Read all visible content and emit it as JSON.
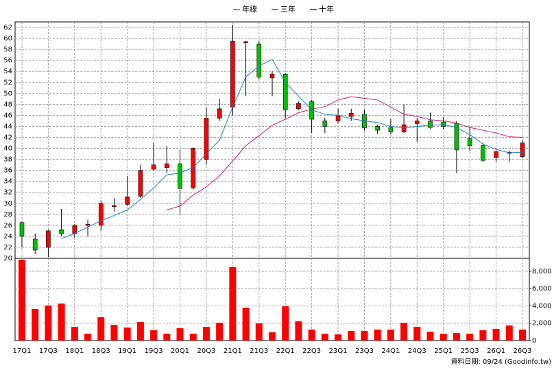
{
  "chart_data": [
    {
      "type": "candlestick",
      "categories": [
        "17Q1",
        null,
        "17Q3",
        null,
        "18Q1",
        null,
        "18Q3",
        null,
        "19Q1",
        null,
        "19Q3",
        null,
        "20Q1",
        null,
        "20Q3",
        null,
        "21Q1",
        null,
        "21Q3",
        null,
        "22Q1",
        null,
        "22Q3",
        null,
        "23Q1",
        null,
        "23Q3",
        null,
        "24Q1",
        null,
        "24Q3",
        null,
        "25Q1",
        null,
        "25Q3",
        null,
        "26Q1",
        null,
        "26Q3"
      ],
      "open": [
        26.5,
        23.5,
        22,
        25.2,
        24.5,
        26,
        26,
        29.4,
        29.8,
        31.3,
        36.2,
        36.5,
        37.2,
        32.8,
        38,
        45.5,
        47.5,
        59.2,
        59,
        52.8,
        53.5,
        47.2,
        48.5,
        45,
        45,
        45.8,
        46.2,
        44,
        43.8,
        43,
        44.5,
        45,
        44.8,
        44.5,
        41.8,
        40.5,
        38.3,
        39.1,
        38.5
      ],
      "high": [
        26.8,
        24.5,
        25.2,
        29,
        26.2,
        27,
        30.5,
        31,
        35,
        37,
        41,
        40.5,
        39.7,
        40.2,
        47.5,
        49,
        62.5,
        59.5,
        59.5,
        54,
        53.7,
        48.5,
        48.8,
        45.6,
        47.2,
        47.2,
        47,
        44.3,
        45.3,
        48,
        45.5,
        46.5,
        45.7,
        45,
        44,
        41,
        39.6,
        39.6,
        41.5
      ],
      "low": [
        22,
        20.8,
        20.2,
        24,
        23.8,
        24,
        25,
        28.5,
        29.5,
        31,
        36,
        35.5,
        28,
        32.5,
        37,
        45,
        46,
        49.5,
        52.5,
        49.5,
        45.5,
        47,
        42.8,
        42.8,
        44.5,
        45,
        43.2,
        42.6,
        42.5,
        42.8,
        41.2,
        43.5,
        43.5,
        35.5,
        39.5,
        37.5,
        37.5,
        37.5,
        38.2
      ],
      "close": [
        24,
        21.5,
        25,
        24.5,
        26,
        26.2,
        30,
        29.6,
        31.2,
        36,
        37,
        37.2,
        32.7,
        40,
        45.5,
        47.2,
        59.5,
        59.4,
        53,
        53.5,
        47,
        48.2,
        45.3,
        44,
        46,
        46.4,
        43.7,
        43.3,
        43,
        44.3,
        45,
        43.8,
        44,
        39.7,
        40.5,
        37.8,
        39.4,
        39.3,
        41
      ],
      "up_color": "#ff0000",
      "down_color": "#00c000",
      "series": [
        {
          "name": "年線",
          "color": "#1e78d2",
          "values": [
            null,
            null,
            null,
            23.6,
            24.5,
            25.7,
            26.8,
            27.8,
            28.8,
            30.7,
            32.8,
            35.2,
            35.5,
            36.5,
            39,
            41.5,
            47.5,
            53,
            55,
            56.2,
            52,
            49.5,
            47,
            46.2,
            46,
            45.4,
            45,
            44.7,
            44,
            43.7,
            44,
            44.2,
            44.3,
            43.8,
            42.5,
            40.8,
            39.8,
            39.2,
            39.3
          ]
        },
        {
          "name": "三年",
          "color": "#d2146e",
          "values": [
            null,
            null,
            null,
            null,
            null,
            null,
            null,
            null,
            null,
            null,
            null,
            28.8,
            29.5,
            31.5,
            33,
            35,
            37.7,
            40.5,
            42.3,
            44.2,
            45.3,
            46.5,
            47.1,
            47.6,
            48.8,
            49.4,
            49.1,
            48.8,
            47.5,
            46.2,
            45.8,
            45.2,
            45,
            44.6,
            43.8,
            43.3,
            42.8,
            42.1,
            42
          ]
        },
        {
          "name": "十年",
          "color": "#8c0a3c",
          "values": [
            null,
            null,
            null,
            null,
            null,
            null,
            null,
            null,
            null,
            null,
            null,
            null,
            null,
            null,
            null,
            null,
            null,
            null,
            null,
            null,
            null,
            null,
            null,
            null,
            null,
            null,
            null,
            null,
            null,
            null,
            null,
            null,
            null,
            null,
            null,
            null,
            null,
            null,
            null
          ]
        }
      ],
      "ylim": [
        20,
        63
      ],
      "yticks": [
        20,
        22,
        24,
        26,
        28,
        30,
        32,
        34,
        36,
        38,
        40,
        42,
        44,
        46,
        48,
        50,
        52,
        54,
        56,
        58,
        60,
        62
      ],
      "grid": true
    },
    {
      "type": "bar",
      "color": "#ff0000",
      "values": [
        9350,
        3650,
        4050,
        4280,
        1580,
        790,
        2700,
        1820,
        1500,
        2140,
        1190,
        790,
        1430,
        790,
        1580,
        2060,
        8480,
        3800,
        1980,
        950,
        3960,
        2220,
        1270,
        790,
        710,
        1110,
        1110,
        1270,
        1270,
        2060,
        1580,
        1030,
        790,
        870,
        790,
        1190,
        1350,
        1740,
        1270
      ],
      "ylim": [
        0,
        9500
      ],
      "yticks": [
        0,
        {
          "value": 2000,
          "label": "2,000"
        },
        {
          "value": 4000,
          "label": "4,000"
        },
        {
          "value": 6000,
          "label": "6,000"
        },
        {
          "value": 8000,
          "label": "8,000"
        }
      ],
      "grid": true
    }
  ],
  "footer": "資料日期: 09/24  (Goodinfo.tw)"
}
